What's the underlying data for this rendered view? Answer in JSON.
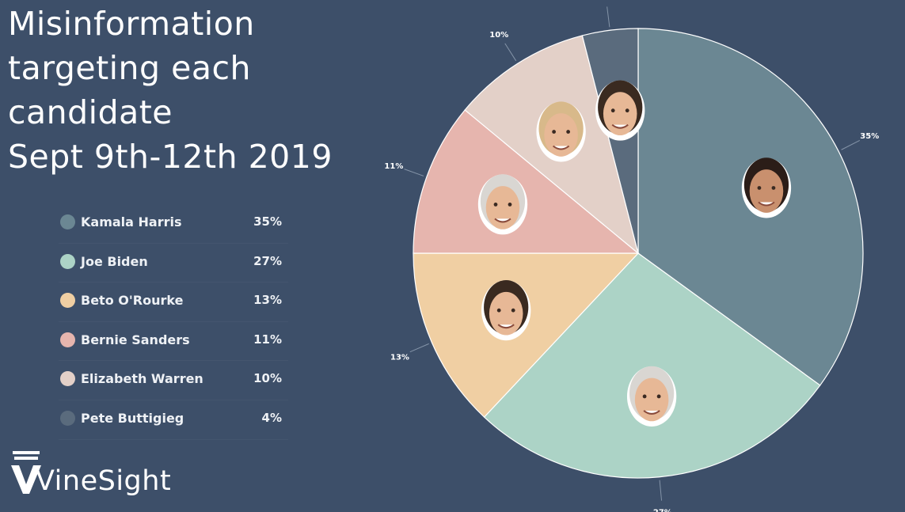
{
  "chart_data": {
    "type": "pie",
    "title_lines": [
      "Misinformation",
      "targeting each",
      "candidate",
      "Sept 9th-12th 2019"
    ],
    "categories": [
      "Kamala Harris",
      "Joe Biden",
      "Beto O'Rourke",
      "Bernie Sanders",
      "Elizabeth Warren",
      "Pete Buttigieg"
    ],
    "values": [
      35,
      27,
      13,
      11,
      10,
      4
    ],
    "value_labels": [
      "35%",
      "27%",
      "13%",
      "11%",
      "10%",
      "4%"
    ],
    "colors": [
      "#6b8793",
      "#acd3c6",
      "#f0cfa3",
      "#e6b5ae",
      "#e3d0c8",
      "#5a6b7d"
    ],
    "legend_placement": "left"
  },
  "brand": {
    "name": "VineSight",
    "logo_icon": "vinesight-logo-icon"
  }
}
